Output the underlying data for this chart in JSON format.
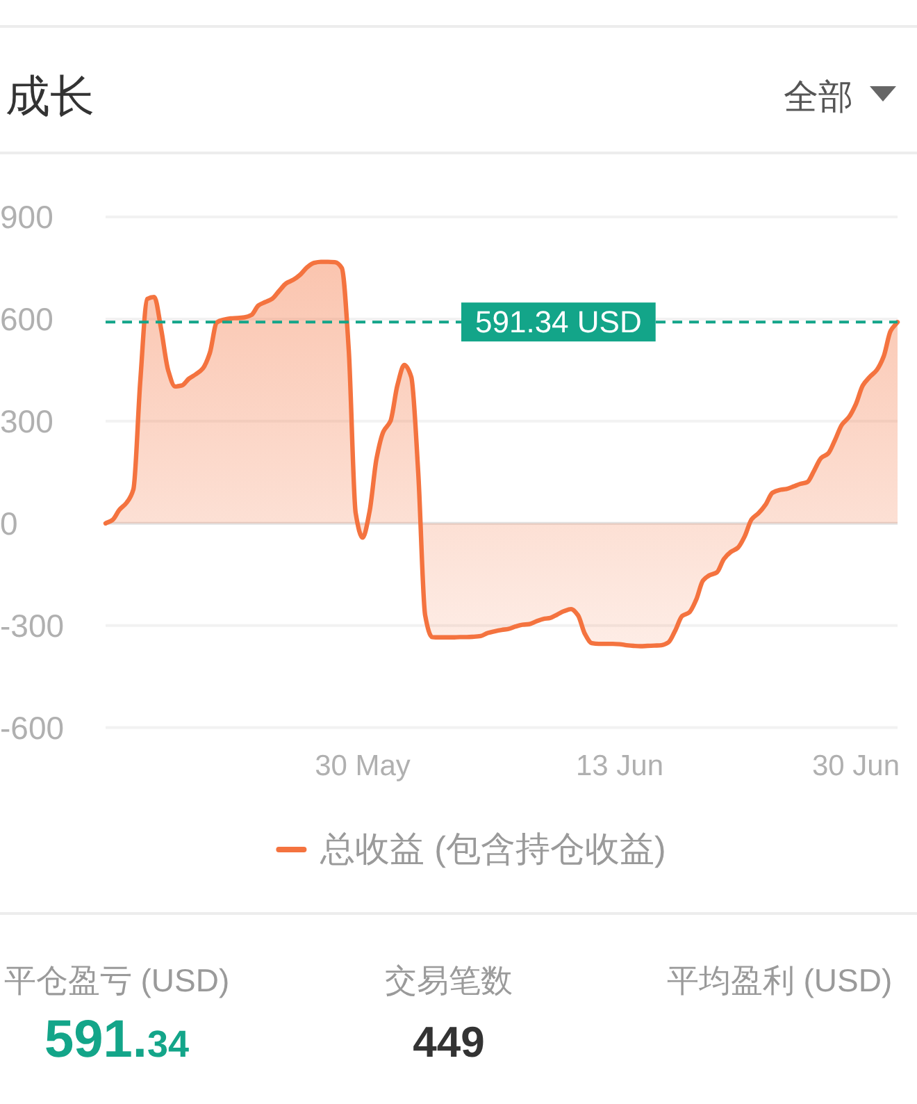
{
  "chart_data": [
    {
      "type": "area",
      "title": "成长",
      "annotations": [
        "全部"
      ],
      "categories": [
        null,
        null,
        null,
        null,
        null,
        null,
        null,
        null,
        null,
        null,
        null,
        null,
        null,
        null,
        null,
        null,
        null,
        null,
        null,
        null,
        null,
        null,
        null,
        null,
        null,
        null,
        null,
        null,
        null,
        null,
        null,
        null,
        null,
        null,
        null,
        null,
        null,
        "30 May",
        null,
        null,
        null,
        null,
        null,
        null,
        null,
        null,
        null,
        null,
        null,
        null,
        null,
        null,
        null,
        null,
        null,
        null,
        null,
        null,
        null,
        null,
        null,
        null,
        null,
        null,
        null,
        null,
        null,
        null,
        null,
        null,
        null,
        null,
        null,
        null,
        "13 Jun",
        null,
        null,
        null,
        null,
        null,
        null,
        null,
        null,
        null,
        null,
        null,
        null,
        null,
        null,
        null,
        null,
        null,
        null,
        null,
        null,
        null,
        null,
        null,
        null,
        null,
        null,
        null,
        null,
        null,
        null,
        null,
        null,
        null,
        "30 Jun",
        null,
        null,
        null,
        null,
        null,
        null
      ],
      "series": [
        {
          "name": "总收益 (包含持仓收益)",
          "color": "#f4733f",
          "values": [
            0,
            10,
            40,
            60,
            100,
            420,
            659,
            665,
            570,
            450,
            402,
            405,
            425,
            438,
            455,
            500,
            590,
            598,
            602,
            603,
            605,
            612,
            640,
            650,
            660,
            683,
            705,
            715,
            730,
            752,
            765,
            768,
            768,
            767,
            750,
            510,
            30,
            -42,
            35,
            190,
            270,
            300,
            405,
            465,
            430,
            150,
            -270,
            -334,
            -335,
            -335,
            -335,
            -334,
            -334,
            -333,
            -331,
            -322,
            -317,
            -313,
            -310,
            -303,
            -298,
            -296,
            -288,
            -281,
            -278,
            -268,
            -258,
            -252,
            -270,
            -325,
            -352,
            -354,
            -354,
            -354,
            -355,
            -358,
            -360,
            -361,
            -360,
            -359,
            -358,
            -350,
            -315,
            -272,
            -262,
            -225,
            -168,
            -152,
            -144,
            -105,
            -84,
            -72,
            -38,
            12,
            30,
            55,
            90,
            98,
            101,
            108,
            116,
            121,
            155,
            192,
            205,
            245,
            290,
            312,
            350,
            405,
            430,
            450,
            490,
            565,
            591
          ]
        }
      ],
      "ylim": [
        -600,
        900
      ],
      "yticks": [
        -600,
        -300,
        0,
        300,
        600,
        900
      ],
      "ref_lines": [
        {
          "axis": "y",
          "value": 591.34,
          "label": "591.34 USD",
          "color": "#13a589",
          "line_style": "dashed"
        }
      ],
      "grid": "y",
      "legend": "bottom"
    },
    {
      "type": "other",
      "annotations": [
        "平仓盈亏 (USD)",
        "591.34",
        "交易笔数",
        "449",
        "平均盈利 (USD)"
      ]
    }
  ]
}
